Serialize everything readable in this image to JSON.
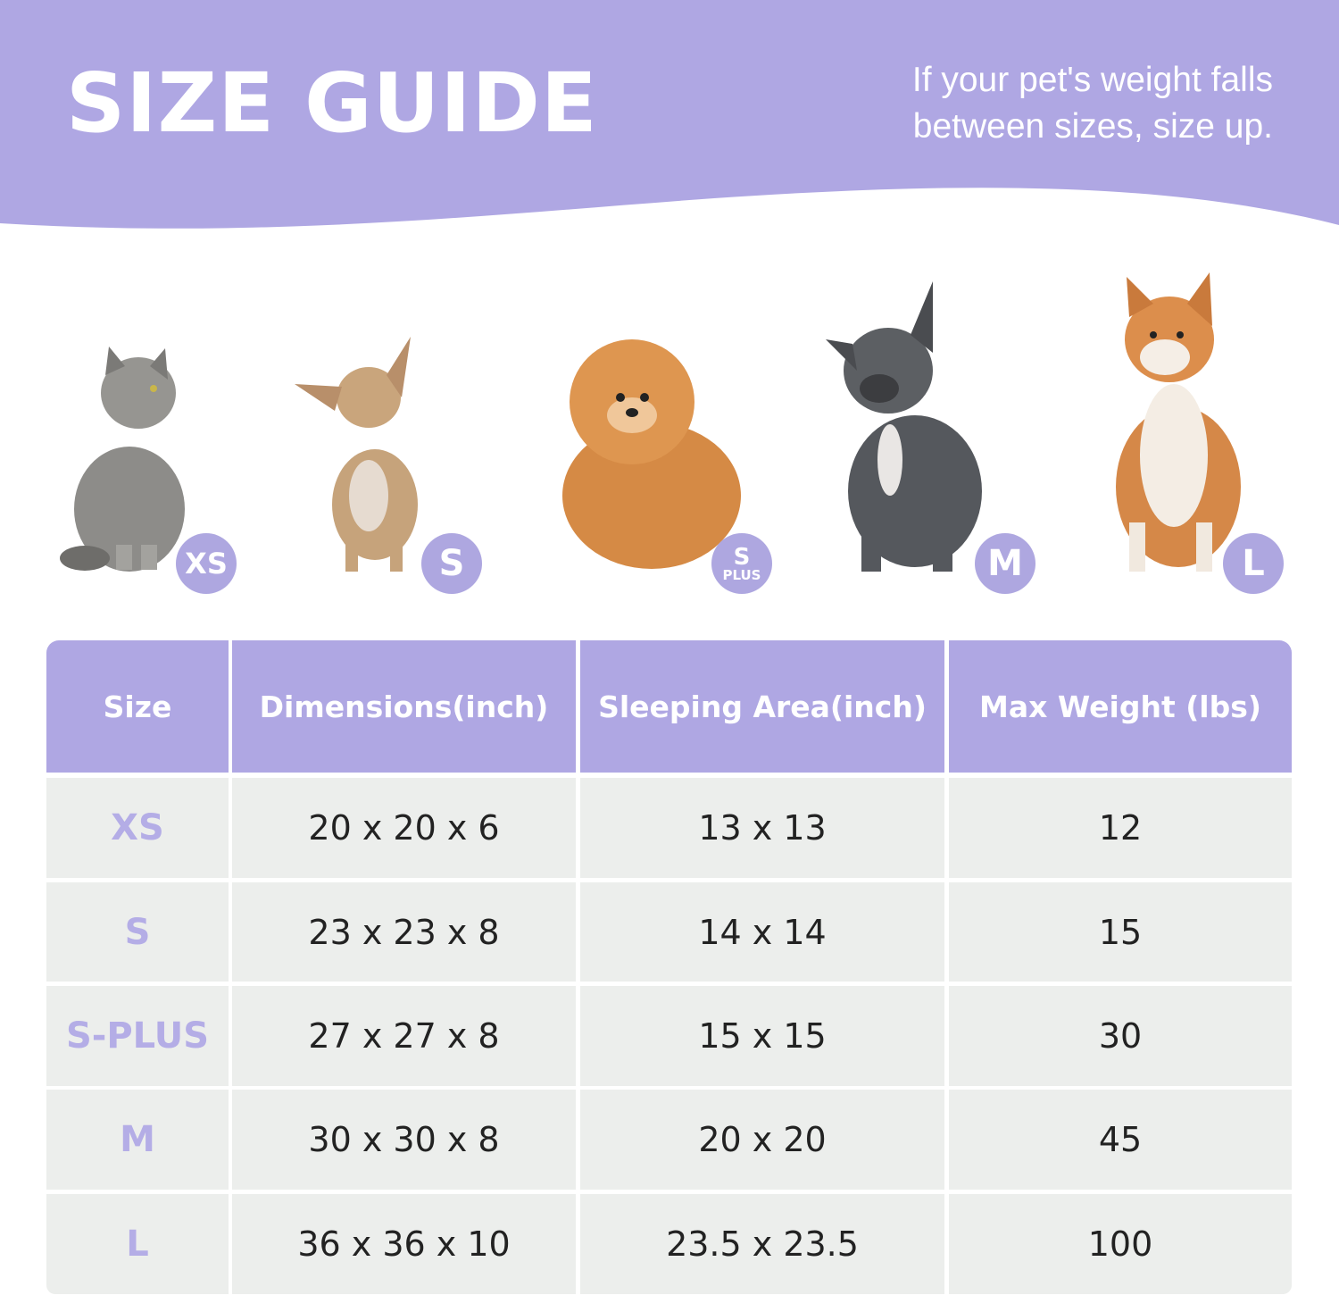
{
  "header": {
    "title": "SIZE GUIDE",
    "subtitle_line1": "If your pet's weight falls",
    "subtitle_line2": "between sizes, size up.",
    "background_color": "#afa7e3"
  },
  "pets": [
    {
      "animal": "cat",
      "badge": "XS"
    },
    {
      "animal": "chihuahua",
      "badge": "S"
    },
    {
      "animal": "pomeranian",
      "badge": "S",
      "badge_sub": "PLUS"
    },
    {
      "animal": "french-bulldog",
      "badge": "M"
    },
    {
      "animal": "shiba-inu",
      "badge": "L"
    }
  ],
  "table": {
    "headers": [
      "Size",
      "Dimensions(inch)",
      "Sleeping Area(inch)",
      "Max Weight (lbs)"
    ],
    "rows": [
      [
        "XS",
        "20 x 20 x 6",
        "13 x 13",
        "12"
      ],
      [
        "S",
        "23 x 23 x 8",
        "14 x 14",
        "15"
      ],
      [
        "S-PLUS",
        "27 x 27 x 8",
        "15 x 15",
        "30"
      ],
      [
        "M",
        "30 x 30 x 8",
        "20 x 20",
        "45"
      ],
      [
        "L",
        "36 x 36 x 10",
        "23.5 x 23.5",
        "100"
      ]
    ],
    "header_color": "#afa7e3",
    "row_color": "#eceeec",
    "size_text_color": "#b4ade6"
  }
}
